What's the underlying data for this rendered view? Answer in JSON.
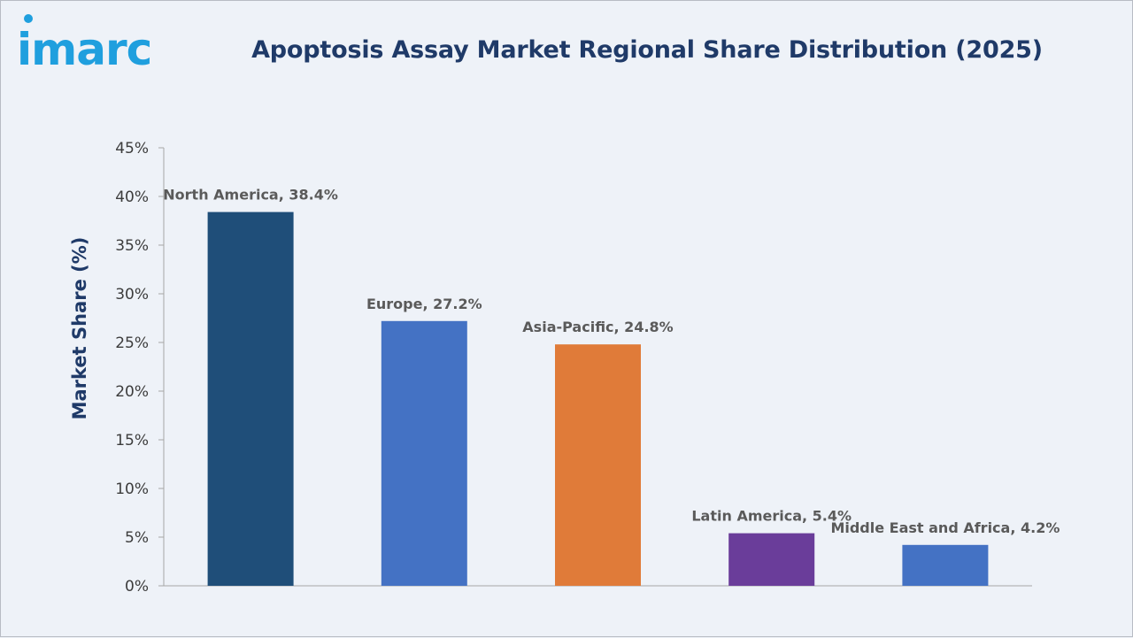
{
  "logo": {
    "text": "imarc",
    "color": "#1f9fde"
  },
  "chart_data": {
    "type": "bar",
    "title": "Apoptosis Assay Market Regional Share Distribution (2025)",
    "xlabel": "",
    "ylabel": "Market Share (%)",
    "categories": [
      "North America",
      "Europe",
      "Asia-Pacific",
      "Latin America",
      "Middle East and Africa"
    ],
    "values": [
      38.4,
      27.2,
      24.8,
      5.4,
      4.2
    ],
    "data_labels": [
      "North America, 38.4%",
      "Europe, 27.2%",
      "Asia-Pacific, 24.8%",
      "Latin America, 5.4%",
      "Middle East and Africa, 4.2%"
    ],
    "colors": [
      "#1f4e79",
      "#4472c4",
      "#e07b39",
      "#6a3d9a",
      "#4472c4"
    ],
    "ylim": [
      0,
      45
    ],
    "yticks": [
      0,
      5,
      10,
      15,
      20,
      25,
      30,
      35,
      40,
      45
    ],
    "ytick_labels": [
      "0%",
      "5%",
      "10%",
      "15%",
      "20%",
      "25%",
      "30%",
      "35%",
      "40%",
      "45%"
    ],
    "grid": false,
    "legend": "none"
  }
}
